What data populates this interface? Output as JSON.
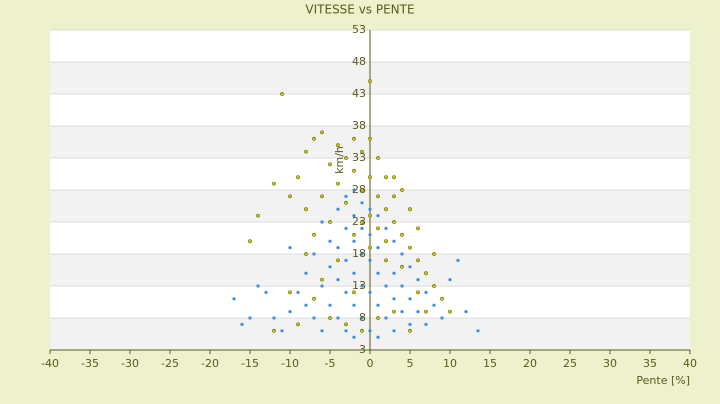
{
  "chart_data": {
    "type": "scatter",
    "title": "VITESSE vs PENTE",
    "x_label": "Pente [%]",
    "y_label": "km/h",
    "xlim": [
      -40,
      40
    ],
    "xticks": [
      -40,
      -35,
      -30,
      -25,
      -20,
      -15,
      -10,
      -5,
      0,
      5,
      10,
      15,
      20,
      25,
      30,
      35,
      40
    ],
    "ylim": [
      3,
      53
    ],
    "yticks": [
      3,
      8,
      13,
      18,
      23,
      28,
      33,
      38,
      43,
      48,
      53
    ],
    "grid": true,
    "banded": true,
    "series": [
      {
        "color": "#3b8ee0",
        "x": [
          -17,
          -16,
          -15,
          -13,
          -12,
          -11,
          -10,
          -9,
          -9,
          -8,
          -8,
          -7,
          -7,
          -6,
          -6,
          -6,
          -5,
          -5,
          -5,
          -4,
          -4,
          -4,
          -4,
          -3,
          -3,
          -3,
          -3,
          -3,
          -2,
          -2,
          -2,
          -2,
          -2,
          -2,
          -1,
          -1,
          -1,
          -1,
          -1,
          0,
          0,
          0,
          0,
          0,
          1,
          1,
          1,
          1,
          1,
          2,
          2,
          2,
          2,
          3,
          3,
          3,
          3,
          4,
          4,
          4,
          5,
          5,
          5,
          6,
          6,
          7,
          7,
          8,
          9,
          10,
          11,
          12,
          13.5,
          -10,
          -14
        ],
        "values": [
          11,
          7,
          8,
          12,
          8,
          6,
          9,
          12,
          7,
          15,
          10,
          18,
          8,
          23,
          13,
          6,
          20,
          16,
          10,
          25,
          19,
          14,
          8,
          27,
          22,
          17,
          12,
          6,
          28,
          24,
          20,
          15,
          10,
          5,
          26,
          22,
          18,
          13,
          8,
          25,
          21,
          17,
          12,
          6,
          24,
          19,
          15,
          10,
          5,
          22,
          17,
          13,
          8,
          20,
          15,
          11,
          6,
          18,
          13,
          9,
          16,
          11,
          7,
          14,
          9,
          12,
          7,
          10,
          8,
          14,
          17,
          9,
          6,
          19,
          13
        ]
      },
      {
        "color": "#c8c800",
        "x": [
          -11,
          -8,
          -7,
          -6,
          -5,
          -4,
          -3,
          -2,
          -1,
          0,
          0,
          1,
          2,
          3,
          4,
          5,
          -12,
          -14,
          -10,
          -9,
          -8,
          -7,
          -6,
          -5,
          -4,
          -3,
          -2,
          -1,
          0,
          1,
          2,
          3,
          4,
          5,
          6,
          7,
          8,
          9,
          10,
          -8,
          -6,
          -5,
          -4,
          -3,
          -2,
          -1,
          0,
          1,
          2,
          3,
          4,
          5,
          6,
          7,
          8,
          -10,
          -12,
          -9,
          -7,
          0,
          1,
          -1,
          2,
          -2,
          6,
          3,
          -15
        ],
        "values": [
          43,
          34,
          36,
          37,
          32,
          35,
          33,
          36,
          34,
          45,
          36,
          33,
          30,
          30,
          28,
          25,
          29,
          24,
          27,
          30,
          25,
          21,
          27,
          23,
          29,
          26,
          31,
          28,
          30,
          27,
          25,
          23,
          21,
          19,
          17,
          15,
          13,
          11,
          9,
          18,
          14,
          8,
          17,
          7,
          21,
          6,
          19,
          8,
          20,
          9,
          16,
          6,
          12,
          9,
          18,
          12,
          6,
          7,
          11,
          24,
          22,
          23,
          17,
          12,
          22,
          27,
          20
        ]
      }
    ]
  }
}
